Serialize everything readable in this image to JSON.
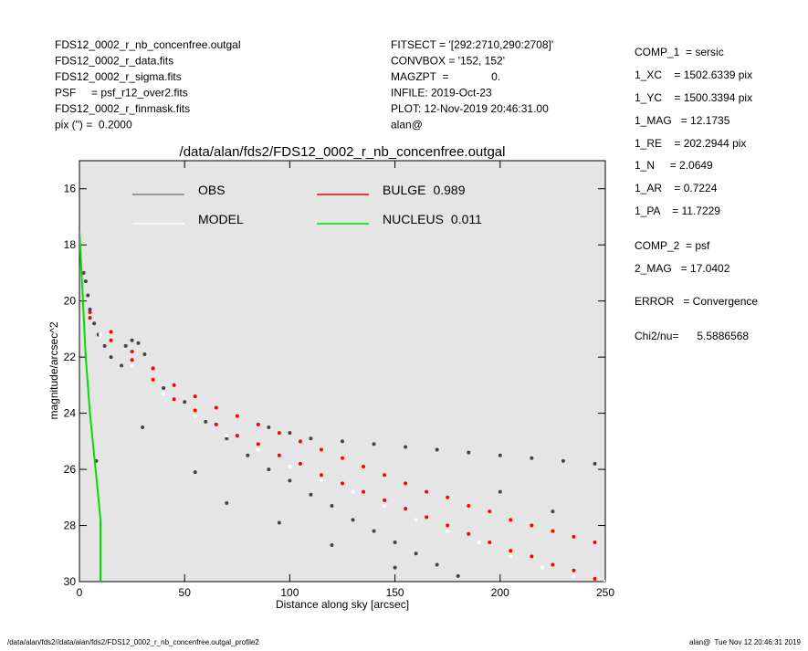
{
  "header": {
    "left": [
      "FDS12_0002_r_nb_concenfree.outgal",
      "FDS12_0002_r_data.fits",
      "FDS12_0002_r_sigma.fits",
      "PSF     = psf_r12_over2.fits",
      "FDS12_0002_r_finmask.fits",
      "pix (\") =  0.2000"
    ],
    "middle": [
      "FITSECT = '[292:2710,290:2708]'",
      "CONVBOX = '152, 152'",
      "MAGZPT  =              0.",
      "INFILE: 2019-Oct-23",
      "PLOT: 12-Nov-2019 20:46:31.00",
      "alan@"
    ]
  },
  "params": [
    "COMP_1  = sersic",
    "1_XC    = 1502.6339 pix",
    "1_YC    = 1500.3394 pix",
    "1_MAG   = 12.1735",
    "1_RE    = 202.2944 pix",
    "1_N     = 2.0649",
    "1_AR    = 0.7224",
    "1_PA    = 11.7229",
    "COMP_2  = psf",
    "2_MAG   = 17.0402",
    "ERROR   = Convergence",
    "Chi2/nu=      5.5886568"
  ],
  "footer": {
    "left": "/data/alan/fds2//data/alan/fds2/FDS12_0002_r_nb_concenfree.outgal_profile2",
    "right": "alan@  Tue Nov 12 20:46:31 2019"
  },
  "chart_data": {
    "type": "scatter",
    "title": "/data/alan/fds2/FDS12_0002_r_nb_concenfree.outgal",
    "x_label": "Distance along sky [arcsec]",
    "y_label": "magnitude/arcsec^2",
    "xlim": [
      0,
      250
    ],
    "xticks": [
      0,
      50,
      100,
      150,
      200,
      250
    ],
    "ylim": [
      30,
      15
    ],
    "yticks": [
      16,
      18,
      20,
      22,
      24,
      26,
      28,
      30
    ],
    "series": [
      {
        "name": "OBS",
        "color": "#444444",
        "legend_color": "#808080",
        "mode": "dots",
        "x": [
          2,
          3,
          4,
          5,
          7,
          9,
          12,
          15,
          20,
          22,
          25,
          28,
          31,
          35,
          40,
          50,
          60,
          70,
          80,
          90,
          100,
          110,
          120,
          130,
          140,
          150,
          160,
          170,
          180,
          90,
          100,
          110,
          125,
          140,
          155,
          170,
          185,
          200,
          215,
          230,
          245,
          30,
          55,
          70,
          95,
          120,
          150,
          200,
          225,
          8
        ],
        "values": [
          19,
          19.3,
          19.8,
          20.3,
          20.8,
          21.2,
          21.6,
          22,
          22.3,
          21.6,
          21.4,
          21.5,
          21.9,
          22.4,
          23.1,
          23.6,
          24.3,
          24.9,
          25.5,
          26,
          26.4,
          26.9,
          27.3,
          27.8,
          28.2,
          28.6,
          29,
          29.4,
          29.8,
          24.5,
          24.7,
          24.9,
          25,
          25.1,
          25.2,
          25.3,
          25.4,
          25.5,
          25.6,
          25.7,
          25.8,
          24.5,
          26.1,
          27.2,
          27.9,
          28.7,
          29.5,
          26.8,
          27.5,
          25.7
        ]
      },
      {
        "name": "MODEL",
        "color": "#ffffff",
        "legend_color": "#ffffff",
        "mode": "dots",
        "x": [
          10,
          25,
          40,
          55,
          70,
          85,
          100,
          115,
          130,
          145,
          160,
          175,
          190,
          205,
          220,
          235,
          250
        ],
        "values": [
          21.2,
          22.3,
          23.3,
          24.1,
          24.8,
          25.3,
          25.9,
          26.4,
          26.8,
          27.3,
          27.8,
          28.2,
          28.6,
          29.1,
          29.5,
          29.8,
          30
        ]
      },
      {
        "name": "BULGE",
        "fraction": 0.989,
        "color": "#ff0000",
        "legend_color": "#ff0000",
        "mode": "dots",
        "x": [
          5,
          15,
          25,
          35,
          45,
          55,
          65,
          75,
          85,
          95,
          105,
          115,
          125,
          135,
          145,
          155,
          165,
          175,
          185,
          195,
          205,
          215,
          225,
          235,
          245,
          5,
          15,
          25,
          35,
          45,
          55,
          65,
          75,
          85,
          95,
          105,
          115,
          125,
          135,
          145,
          155,
          165,
          175,
          185,
          195,
          205,
          215,
          225,
          235,
          245
        ],
        "values": [
          20.4,
          21.1,
          21.8,
          22.4,
          23,
          23.4,
          23.8,
          24.1,
          24.4,
          24.7,
          25,
          25.3,
          25.6,
          25.9,
          26.2,
          26.5,
          26.8,
          27,
          27.3,
          27.5,
          27.8,
          28,
          28.2,
          28.4,
          28.6,
          20.6,
          21.4,
          22.1,
          22.8,
          23.5,
          23.9,
          24.4,
          24.8,
          25.1,
          25.5,
          25.8,
          26.2,
          26.5,
          26.8,
          27.1,
          27.4,
          27.7,
          28,
          28.3,
          28.6,
          28.9,
          29.1,
          29.4,
          29.6,
          29.9
        ]
      },
      {
        "name": "NUCLEUS",
        "fraction": 0.011,
        "color": "#00dd00",
        "legend_color": "#00dd00",
        "mode": "line",
        "x": [
          0,
          1,
          2,
          3,
          4,
          5,
          7,
          9,
          10,
          10
        ],
        "values": [
          17.5,
          19,
          20.5,
          22,
          23,
          24,
          25.5,
          27,
          27.8,
          30
        ]
      }
    ]
  }
}
